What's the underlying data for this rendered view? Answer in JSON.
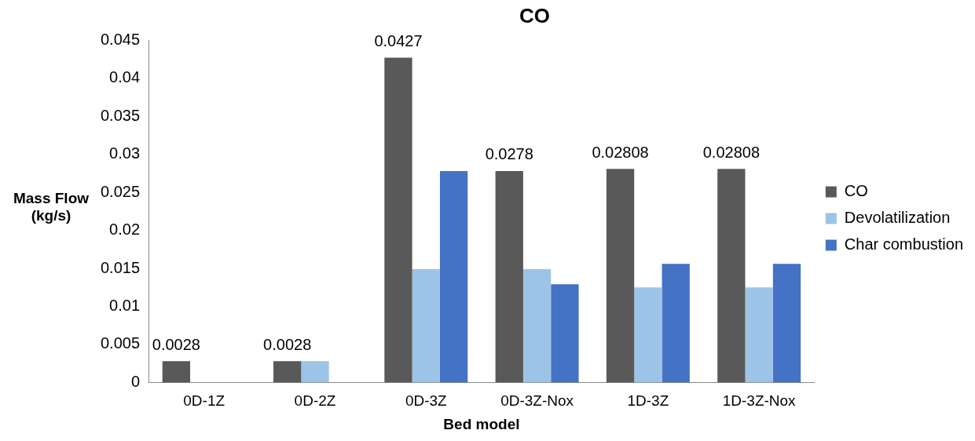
{
  "chart_data": {
    "type": "bar",
    "title": "CO",
    "xlabel": "Bed model",
    "ylabel": "Mass Flow (kg/s)",
    "categories": [
      "0D-1Z",
      "0D-2Z",
      "0D-3Z",
      "0D-3Z-Nox",
      "1D-3Z",
      "1D-3Z-Nox"
    ],
    "series": [
      {
        "name": "CO",
        "color": "#595959",
        "values": [
          0.0028,
          0.0028,
          0.0427,
          0.0278,
          0.02808,
          0.02808
        ],
        "value_labels": [
          "0.0028",
          "0.0028",
          "0.0427",
          "0.0278",
          "0.02808",
          "0.02808"
        ]
      },
      {
        "name": "Devolatilization",
        "color": "#9dc3e6",
        "values": [
          0,
          0.0028,
          0.0149,
          0.0149,
          0.0125,
          0.0125
        ]
      },
      {
        "name": "Char combustion",
        "color": "#4472c4",
        "values": [
          0,
          0,
          0.0278,
          0.0129,
          0.0156,
          0.0156
        ]
      }
    ],
    "ylim": [
      0,
      0.045
    ],
    "yticks": [
      0,
      0.005,
      0.01,
      0.015,
      0.02,
      0.025,
      0.03,
      0.035,
      0.04,
      0.045
    ],
    "grid": false,
    "legend": "right"
  }
}
